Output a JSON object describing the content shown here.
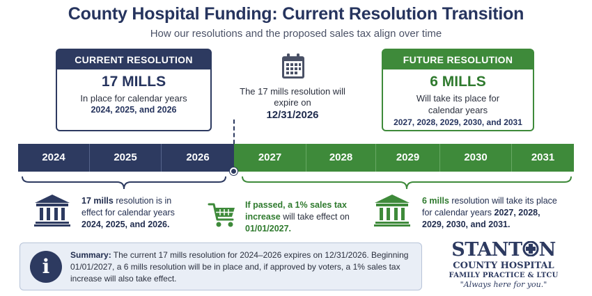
{
  "title": "County Hospital Funding: Current Resolution Transition",
  "subtitle": "How our resolutions and the proposed sales tax align over time",
  "current_card": {
    "header": "CURRENT RESOLUTION",
    "mills": "17 MILLS",
    "text": "In place for calendar years",
    "years": "2024, 2025, and 2026"
  },
  "expiry": {
    "text": "The 17 mills resolution will expire on",
    "date": "12/31/2026"
  },
  "future_card": {
    "header": "FUTURE RESOLUTION",
    "mills": "6 MILLS",
    "text": "Will take its place for calendar years",
    "years": "2027, 2028, 2029, 2030, and 2031"
  },
  "timeline": {
    "current_years": [
      "2024",
      "2025",
      "2026"
    ],
    "future_years": [
      "2027",
      "2028",
      "2029",
      "2030",
      "2031"
    ],
    "colors": {
      "current": "#2d3a60",
      "future": "#3e8a3a"
    }
  },
  "notes": {
    "left_bold": "17 mills",
    "left_text": " resolution is in effect for calendar years ",
    "left_years": "2024, 2025, and 2026.",
    "mid_bold1": "If passed, a 1% sales tax increase",
    "mid_text": " will take effect on ",
    "mid_date": "01/01/2027.",
    "right_bold": "6 mills",
    "right_text": " resolution will take its place for calendar years ",
    "right_years": "2027, 2028, 2029, 2030, and 2031."
  },
  "summary": {
    "label": "Summary:",
    "text": " The current 17 mills resolution for 2024–2026 expires on 12/31/2026. Beginning 01/01/2027, a 6 mills resolution will be in place and, if approved by voters, a 1% sales tax increase will also take effect."
  },
  "logo": {
    "name_part1": "STANT",
    "name_part2": "N",
    "line1": "COUNTY HOSPITAL",
    "line2": "FAMILY PRACTICE & LTCU",
    "tagline": "\"Always here for you.\""
  },
  "icons": {
    "calendar": "calendar-icon",
    "bank_left": "bank-building-icon",
    "cart": "shopping-cart-icon",
    "bank_right": "bank-building-icon",
    "info": "info-icon"
  }
}
